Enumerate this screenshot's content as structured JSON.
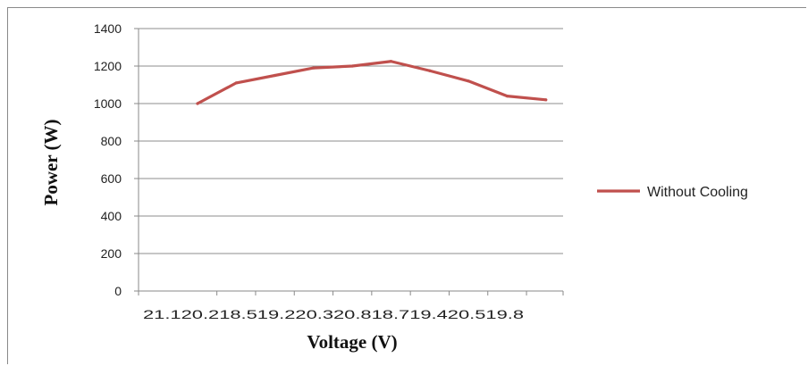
{
  "chart_data": {
    "type": "line",
    "x_categories": [
      "21.1",
      "20.2",
      "18.5",
      "19.2",
      "20.3",
      "20.8",
      "18.7",
      "19.4",
      "20.5",
      "19.8"
    ],
    "x_tick_text": "21.120.218.519.220.320.818.719.420.519.8",
    "series": [
      {
        "name": "Without Cooling",
        "values": [
          1000,
          1110,
          1150,
          1190,
          1200,
          1225,
          1175,
          1120,
          1040,
          1020
        ],
        "color": "#c0504d"
      }
    ],
    "y_ticks": [
      0,
      200,
      400,
      600,
      800,
      1000,
      1200,
      1400
    ],
    "ylim": [
      0,
      1400
    ],
    "xlabel": "Voltage (V)",
    "ylabel": "Power (W)",
    "grid": "horizontal",
    "legend_position": "right"
  }
}
